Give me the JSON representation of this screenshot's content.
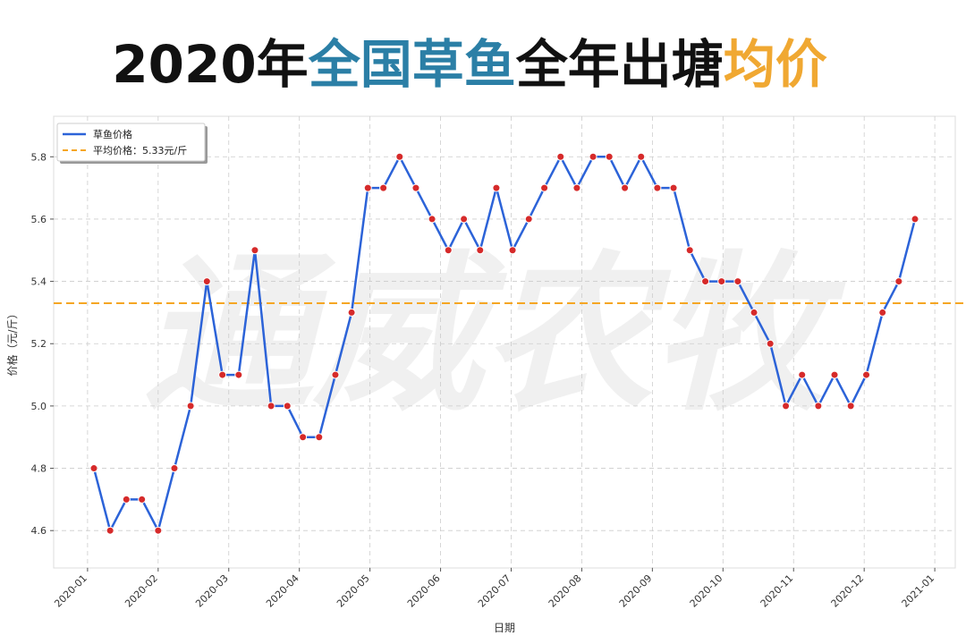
{
  "chart_data": {
    "type": "line",
    "title_parts": [
      {
        "text": "2020年",
        "color": "#111111"
      },
      {
        "text": "全国草鱼",
        "color": "#2b7fa6"
      },
      {
        "text": "全年出塘",
        "color": "#111111"
      },
      {
        "text": "均价",
        "color": "#f0a832"
      }
    ],
    "watermark": "通威农牧",
    "x_label": "日期",
    "y_label": "价格（元/斤）",
    "x": [
      0.09,
      0.32,
      0.55,
      0.77,
      1.0,
      1.23,
      1.46,
      1.69,
      1.91,
      2.14,
      2.37,
      2.6,
      2.83,
      3.05,
      3.28,
      3.51,
      3.74,
      3.97,
      4.19,
      4.42,
      4.65,
      4.88,
      5.11,
      5.33,
      5.56,
      5.79,
      6.02,
      6.25,
      6.47,
      6.7,
      6.93,
      7.16,
      7.39,
      7.61,
      7.84,
      8.07,
      8.3,
      8.53,
      8.75,
      8.98,
      9.21,
      9.44,
      9.67,
      9.89,
      10.12,
      10.35,
      10.58,
      10.81,
      11.03,
      11.26,
      11.49,
      11.72
    ],
    "series": [
      {
        "name": "草鱼价格",
        "color": "#2c63d8",
        "marker_color": "#d62a2a",
        "values": [
          4.8,
          4.6,
          4.7,
          4.7,
          4.6,
          4.8,
          5.0,
          5.4,
          5.1,
          5.1,
          5.5,
          5.0,
          5.0,
          4.9,
          4.9,
          5.1,
          5.3,
          5.7,
          5.7,
          5.8,
          5.7,
          5.6,
          5.5,
          5.6,
          5.5,
          5.7,
          5.5,
          5.6,
          5.7,
          5.8,
          5.7,
          5.8,
          5.8,
          5.7,
          5.8,
          5.7,
          5.7,
          5.5,
          5.4,
          5.4,
          5.4,
          5.3,
          5.2,
          5.0,
          5.1,
          5.0,
          5.1,
          5.0,
          5.1,
          5.3,
          5.4,
          5.6
        ]
      }
    ],
    "hline": {
      "value": 5.33,
      "label": "平均价格：5.33元/斤",
      "color": "#f5a623"
    },
    "xlim": [
      -0.48,
      12.29
    ],
    "xticks": [
      {
        "value": 0,
        "label": "2020-01"
      },
      {
        "value": 1,
        "label": "2020-02"
      },
      {
        "value": 2,
        "label": "2020-03"
      },
      {
        "value": 3,
        "label": "2020-04"
      },
      {
        "value": 4,
        "label": "2020-05"
      },
      {
        "value": 5,
        "label": "2020-06"
      },
      {
        "value": 6,
        "label": "2020-07"
      },
      {
        "value": 7,
        "label": "2020-08"
      },
      {
        "value": 8,
        "label": "2020-09"
      },
      {
        "value": 9,
        "label": "2020-10"
      },
      {
        "value": 10,
        "label": "2020-11"
      },
      {
        "value": 11,
        "label": "2020-12"
      },
      {
        "value": 12,
        "label": "2021-01"
      }
    ],
    "ylim": [
      4.48,
      5.93
    ],
    "yticks": [
      4.6,
      4.8,
      {
        "value": 5,
        "label": "5.0"
      },
      5.2,
      5.4,
      5.6,
      5.8
    ],
    "grid": true,
    "legend": "upper left"
  }
}
